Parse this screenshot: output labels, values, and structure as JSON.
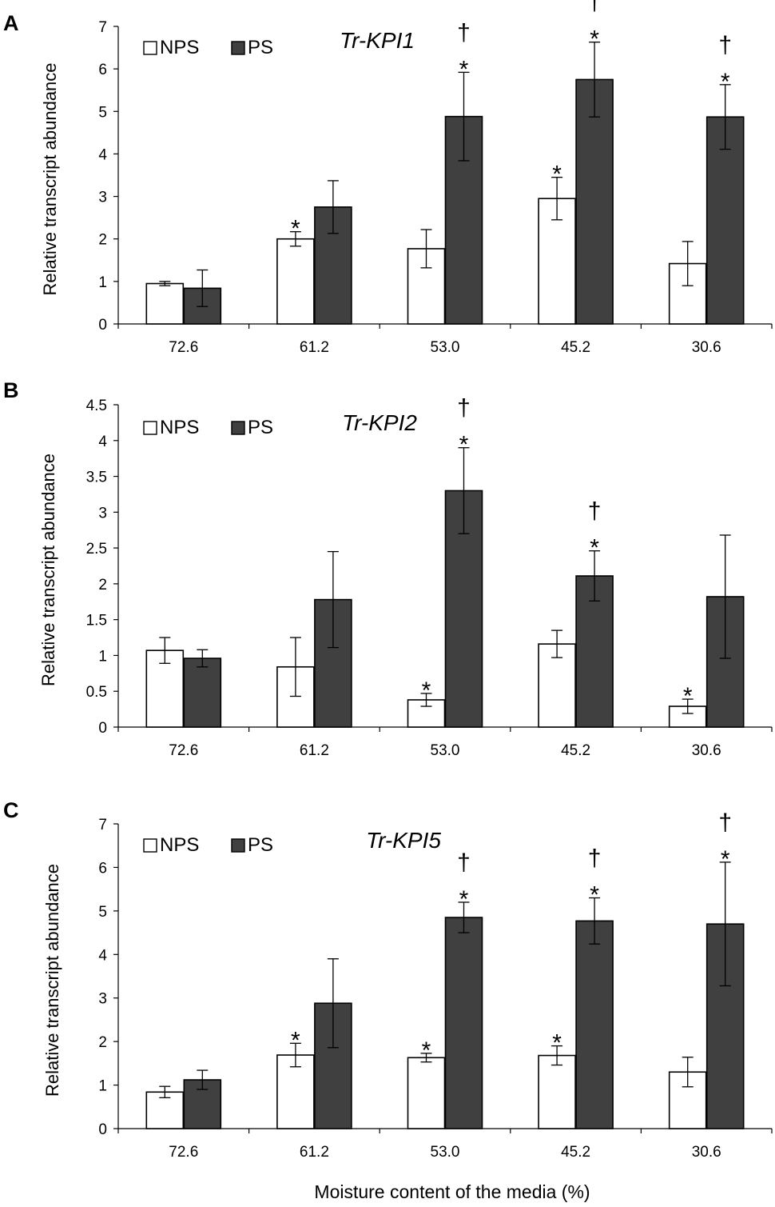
{
  "figure": {
    "x_axis_label": "Moisture content of the media (%)"
  },
  "colors": {
    "nps_fill": "#ffffff",
    "ps_fill": "#404040",
    "stroke": "#000000"
  },
  "chart_data": [
    {
      "type": "bar",
      "panel_label": "A",
      "title": "Tr-KPI1",
      "ylabel": "Relative transcript abundance",
      "xlabel": "Moisture content of the media (%)",
      "categories": [
        "72.6",
        "61.2",
        "53.0",
        "45.2",
        "30.6"
      ],
      "ylim": [
        0,
        7
      ],
      "yticks": [
        "0",
        "1",
        "2",
        "3",
        "4",
        "5",
        "6",
        "7"
      ],
      "legend": [
        "NPS",
        "PS"
      ],
      "series": [
        {
          "name": "NPS",
          "values": [
            0.95,
            2.0,
            1.77,
            2.95,
            1.42
          ],
          "errors": [
            0.05,
            0.17,
            0.45,
            0.5,
            0.52
          ],
          "annotations": [
            [],
            [
              "*"
            ],
            [],
            [
              "*"
            ],
            []
          ]
        },
        {
          "name": "PS",
          "values": [
            0.84,
            2.75,
            4.88,
            5.75,
            4.87
          ],
          "errors": [
            0.43,
            0.62,
            1.04,
            0.88,
            0.76
          ],
          "annotations": [
            [],
            [],
            [
              "*",
              "†"
            ],
            [
              "*",
              "†"
            ],
            [
              "*",
              "†"
            ]
          ]
        }
      ]
    },
    {
      "type": "bar",
      "panel_label": "B",
      "title": "Tr-KPI2",
      "ylabel": "Relative transcript abundance",
      "xlabel": "Moisture content of the media (%)",
      "categories": [
        "72.6",
        "61.2",
        "53.0",
        "45.2",
        "30.6"
      ],
      "ylim": [
        0,
        4.5
      ],
      "yticks": [
        "0",
        "0.5",
        "1",
        "1.5",
        "2",
        "2.5",
        "3",
        "3.5",
        "4",
        "4.5"
      ],
      "legend": [
        "NPS",
        "PS"
      ],
      "series": [
        {
          "name": "NPS",
          "values": [
            1.07,
            0.84,
            0.38,
            1.16,
            0.29
          ],
          "errors": [
            0.18,
            0.41,
            0.09,
            0.19,
            0.1
          ],
          "annotations": [
            [],
            [],
            [
              "*"
            ],
            [],
            [
              "*"
            ]
          ]
        },
        {
          "name": "PS",
          "values": [
            0.96,
            1.78,
            3.3,
            2.11,
            1.82
          ],
          "errors": [
            0.12,
            0.67,
            0.6,
            0.35,
            0.86
          ],
          "annotations": [
            [],
            [],
            [
              "*",
              "†"
            ],
            [
              "*",
              "†"
            ],
            []
          ]
        }
      ]
    },
    {
      "type": "bar",
      "panel_label": "C",
      "title": "Tr-KPI5",
      "ylabel": "Relative transcript abundance",
      "xlabel": "Moisture content of the media (%)",
      "categories": [
        "72.6",
        "61.2",
        "53.0",
        "45.2",
        "30.6"
      ],
      "ylim": [
        0,
        7
      ],
      "yticks": [
        "0",
        "1",
        "2",
        "3",
        "4",
        "5",
        "6",
        "7"
      ],
      "legend": [
        "NPS",
        "PS"
      ],
      "series": [
        {
          "name": "NPS",
          "values": [
            0.84,
            1.69,
            1.63,
            1.68,
            1.3
          ],
          "errors": [
            0.13,
            0.27,
            0.1,
            0.22,
            0.34
          ],
          "annotations": [
            [],
            [
              "*"
            ],
            [
              "*"
            ],
            [
              "*"
            ],
            []
          ]
        },
        {
          "name": "PS",
          "values": [
            1.12,
            2.88,
            4.85,
            4.77,
            4.7
          ],
          "errors": [
            0.22,
            1.02,
            0.35,
            0.53,
            1.42
          ],
          "annotations": [
            [],
            [],
            [
              "*",
              "†"
            ],
            [
              "*",
              "†"
            ],
            [
              "*",
              "†"
            ]
          ]
        }
      ]
    }
  ]
}
